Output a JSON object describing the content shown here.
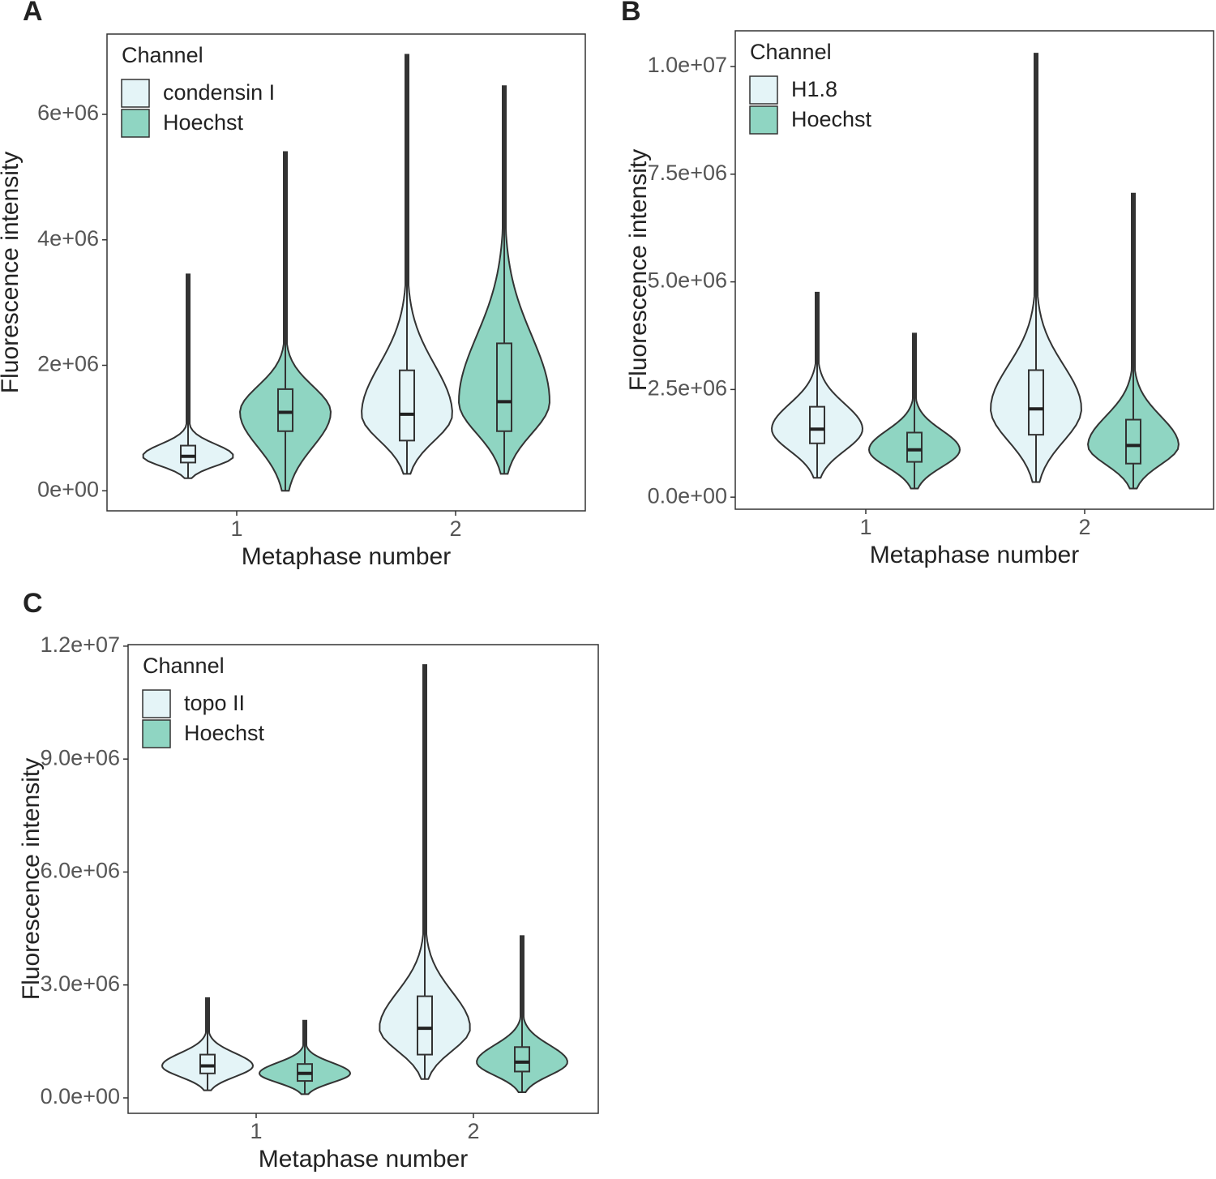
{
  "chart_data": [
    {
      "panel": "A",
      "type": "violin",
      "legend_title": "Channel",
      "legend": "top-left",
      "x_label": "Metaphase number",
      "y_label": "Fluorescence intensity",
      "categories": [
        "1",
        "2"
      ],
      "series": [
        {
          "name": "condensin I",
          "color": "#e4f4f7",
          "min": [
            200000,
            270000
          ],
          "q1": [
            450000,
            800000
          ],
          "median": [
            550000,
            1220000
          ],
          "q3": [
            720000,
            1920000
          ],
          "max": [
            3450000,
            6950000
          ]
        },
        {
          "name": "Hoechst",
          "color": "#8fd5c2",
          "min": [
            0,
            270000
          ],
          "q1": [
            950000,
            950000
          ],
          "median": [
            1250000,
            1420000
          ],
          "q3": [
            1620000,
            2350000
          ],
          "max": [
            5400000,
            6450000
          ]
        }
      ],
      "ylim": [
        -320000,
        7280000
      ],
      "yticks": [
        {
          "value": 0,
          "label": "0e+00"
        },
        {
          "value": 2000000,
          "label": "2e+06"
        },
        {
          "value": 4000000,
          "label": "4e+06"
        },
        {
          "value": 6000000,
          "label": "6e+06"
        }
      ]
    },
    {
      "panel": "B",
      "type": "violin",
      "legend_title": "Channel",
      "legend": "top-left",
      "x_label": "Metaphase number",
      "y_label": "Fluorescence intensity",
      "categories": [
        "1",
        "2"
      ],
      "series": [
        {
          "name": "H1.8",
          "color": "#e4f4f7",
          "min": [
            450000,
            350000
          ],
          "q1": [
            1250000,
            1450000
          ],
          "median": [
            1580000,
            2050000
          ],
          "q3": [
            2100000,
            2950000
          ],
          "max": [
            4750000,
            10300000
          ]
        },
        {
          "name": "Hoechst",
          "color": "#8fd5c2",
          "min": [
            200000,
            200000
          ],
          "q1": [
            820000,
            780000
          ],
          "median": [
            1100000,
            1200000
          ],
          "q3": [
            1500000,
            1800000
          ],
          "max": [
            3800000,
            7050000
          ]
        }
      ],
      "ylim": [
        -280000,
        10830000
      ],
      "yticks": [
        {
          "value": 0,
          "label": "0.0e+00"
        },
        {
          "value": 2500000,
          "label": "2.5e+06"
        },
        {
          "value": 5000000,
          "label": "5.0e+06"
        },
        {
          "value": 7500000,
          "label": "7.5e+06"
        },
        {
          "value": 10000000,
          "label": "1.0e+07"
        }
      ]
    },
    {
      "panel": "C",
      "type": "violin",
      "legend_title": "Channel",
      "legend": "top-left",
      "x_label": "Metaphase number",
      "y_label": "Fluorescence intensity",
      "categories": [
        "1",
        "2"
      ],
      "series": [
        {
          "name": "topo II",
          "color": "#e4f4f7",
          "min": [
            200000,
            500000
          ],
          "q1": [
            650000,
            1150000
          ],
          "median": [
            850000,
            1850000
          ],
          "q3": [
            1150000,
            2700000
          ],
          "max": [
            2650000,
            11500000
          ]
        },
        {
          "name": "Hoechst",
          "color": "#8fd5c2",
          "min": [
            100000,
            150000
          ],
          "q1": [
            450000,
            700000
          ],
          "median": [
            650000,
            950000
          ],
          "q3": [
            900000,
            1350000
          ],
          "max": [
            2050000,
            4300000
          ]
        }
      ],
      "ylim": [
        -410000,
        12040000
      ],
      "yticks": [
        {
          "value": 0,
          "label": "0.0e+00"
        },
        {
          "value": 3000000,
          "label": "3.0e+06"
        },
        {
          "value": 6000000,
          "label": "6.0e+06"
        },
        {
          "value": 9000000,
          "label": "9.0e+06"
        },
        {
          "value": 12000000,
          "label": "1.2e+07"
        }
      ]
    }
  ]
}
